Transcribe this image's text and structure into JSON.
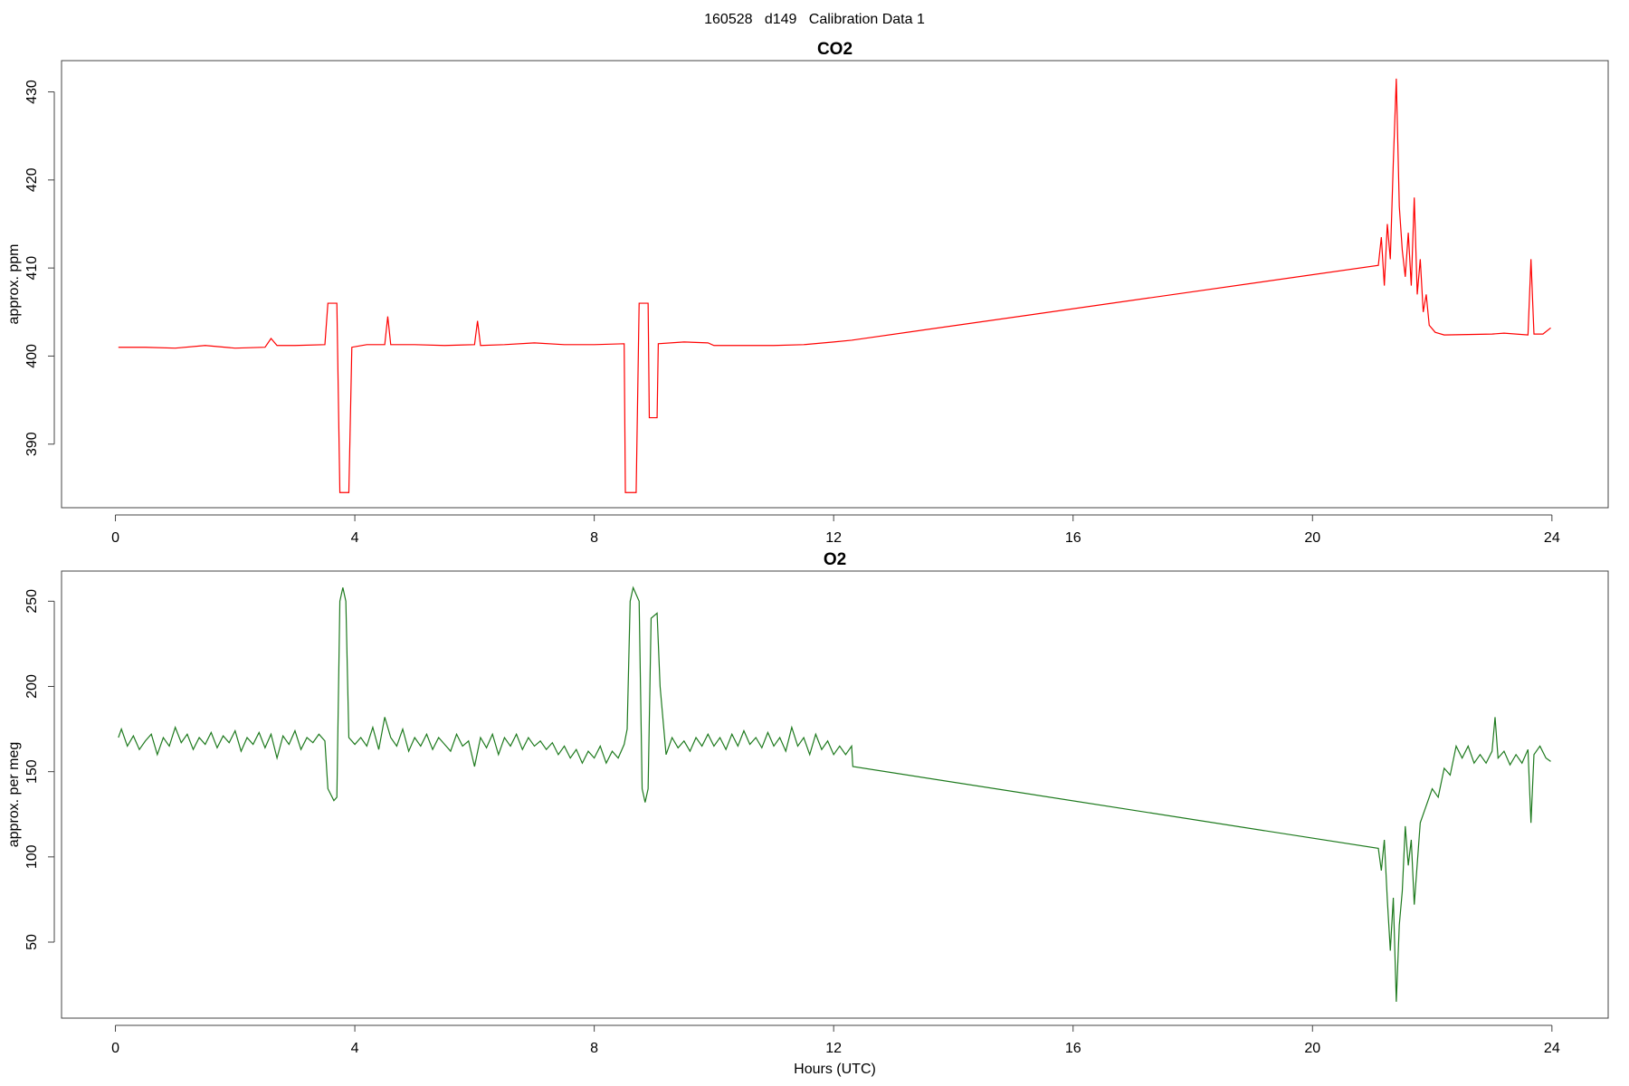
{
  "title": "160528   d149   Calibration Data 1",
  "chart_data": [
    {
      "type": "line",
      "title": "CO2",
      "ylabel": "approx. ppm",
      "color": "#ff0000",
      "xlim": [
        -0.9,
        24.94
      ],
      "ylim": [
        382.78,
        433.55
      ],
      "xticks": [
        0,
        4,
        8,
        12,
        16,
        20,
        24
      ],
      "yticks": [
        390,
        400,
        410,
        420,
        430
      ],
      "x": [
        0.05,
        0.5,
        1.0,
        1.5,
        2.0,
        2.5,
        2.6,
        2.7,
        3.0,
        3.5,
        3.55,
        3.7,
        3.75,
        3.9,
        3.95,
        4.2,
        4.5,
        4.55,
        4.6,
        5.0,
        5.5,
        6.0,
        6.05,
        6.1,
        6.5,
        7.0,
        7.5,
        8.0,
        8.5,
        8.52,
        8.7,
        8.75,
        8.9,
        8.92,
        9.05,
        9.07,
        9.5,
        9.9,
        10.0,
        11.0,
        11.5,
        12.0,
        12.3,
        21.1,
        21.15,
        21.2,
        21.25,
        21.3,
        21.35,
        21.4,
        21.45,
        21.5,
        21.55,
        21.6,
        21.65,
        21.7,
        21.75,
        21.8,
        21.85,
        21.9,
        21.95,
        22.05,
        22.2,
        23.0,
        23.2,
        23.6,
        23.65,
        23.7,
        23.85,
        23.98
      ],
      "values": [
        401,
        401,
        400.9,
        401.2,
        400.9,
        401,
        402,
        401.2,
        401.2,
        401.3,
        406,
        406,
        384.5,
        384.5,
        401,
        401.3,
        401.3,
        404.5,
        401.3,
        401.3,
        401.2,
        401.3,
        404,
        401.2,
        401.3,
        401.5,
        401.3,
        401.3,
        401.4,
        384.5,
        384.5,
        406,
        406,
        393,
        393,
        401.4,
        401.6,
        401.5,
        401.2,
        401.2,
        401.3,
        401.6,
        401.8,
        410.3,
        413.5,
        408,
        415,
        411,
        422,
        431.5,
        417,
        412,
        409,
        414,
        408,
        418,
        407,
        411,
        405,
        407,
        403.5,
        402.7,
        402.4,
        402.5,
        402.6,
        402.4,
        411,
        402.5,
        402.5,
        403.2
      ]
    },
    {
      "type": "line",
      "title": "O2",
      "ylabel": "approx. per meg",
      "xlabel": "Hours (UTC)",
      "color": "#1e7a1e",
      "xlim": [
        -0.9,
        24.94
      ],
      "ylim": [
        5.4,
        267.7
      ],
      "xticks": [
        0,
        4,
        8,
        12,
        16,
        20,
        24
      ],
      "yticks": [
        50,
        100,
        150,
        200,
        250
      ],
      "x": [
        0.05,
        0.1,
        0.2,
        0.3,
        0.4,
        0.5,
        0.6,
        0.7,
        0.8,
        0.9,
        1.0,
        1.1,
        1.2,
        1.3,
        1.4,
        1.5,
        1.6,
        1.7,
        1.8,
        1.9,
        2.0,
        2.1,
        2.2,
        2.3,
        2.4,
        2.5,
        2.6,
        2.7,
        2.8,
        2.9,
        3.0,
        3.1,
        3.2,
        3.3,
        3.4,
        3.5,
        3.55,
        3.65,
        3.7,
        3.75,
        3.8,
        3.85,
        3.9,
        4.0,
        4.1,
        4.2,
        4.3,
        4.4,
        4.5,
        4.6,
        4.7,
        4.8,
        4.9,
        5.0,
        5.1,
        5.2,
        5.3,
        5.4,
        5.5,
        5.6,
        5.7,
        5.8,
        5.9,
        6.0,
        6.1,
        6.2,
        6.3,
        6.4,
        6.5,
        6.6,
        6.7,
        6.8,
        6.9,
        7.0,
        7.1,
        7.2,
        7.3,
        7.4,
        7.5,
        7.6,
        7.7,
        7.8,
        7.9,
        8.0,
        8.1,
        8.2,
        8.3,
        8.4,
        8.5,
        8.55,
        8.6,
        8.65,
        8.75,
        8.8,
        8.85,
        8.9,
        8.95,
        9.05,
        9.1,
        9.2,
        9.3,
        9.4,
        9.5,
        9.6,
        9.7,
        9.8,
        9.9,
        10.0,
        10.1,
        10.2,
        10.3,
        10.4,
        10.5,
        10.6,
        10.7,
        10.8,
        10.9,
        11.0,
        11.1,
        11.2,
        11.3,
        11.4,
        11.5,
        11.6,
        11.7,
        11.8,
        11.9,
        12.0,
        12.1,
        12.2,
        12.3,
        12.32,
        21.1,
        21.15,
        21.2,
        21.25,
        21.3,
        21.35,
        21.4,
        21.45,
        21.5,
        21.55,
        21.6,
        21.65,
        21.7,
        21.8,
        21.9,
        22.0,
        22.1,
        22.2,
        22.3,
        22.4,
        22.5,
        22.6,
        22.7,
        22.8,
        22.9,
        23.0,
        23.05,
        23.1,
        23.2,
        23.3,
        23.4,
        23.5,
        23.6,
        23.65,
        23.7,
        23.8,
        23.9,
        23.98
      ],
      "values": [
        170,
        175,
        165,
        171,
        163,
        168,
        172,
        160,
        170,
        165,
        176,
        167,
        172,
        163,
        170,
        166,
        173,
        164,
        171,
        167,
        174,
        162,
        170,
        166,
        173,
        164,
        172,
        158,
        171,
        166,
        174,
        163,
        170,
        167,
        172,
        168,
        140,
        133,
        135,
        250,
        258,
        250,
        170,
        166,
        170,
        165,
        176,
        163,
        182,
        170,
        165,
        175,
        162,
        170,
        165,
        172,
        163,
        170,
        166,
        162,
        172,
        165,
        168,
        153,
        170,
        164,
        172,
        160,
        170,
        165,
        172,
        163,
        170,
        165,
        168,
        163,
        167,
        160,
        165,
        158,
        163,
        155,
        162,
        158,
        165,
        155,
        162,
        158,
        166,
        175,
        250,
        258,
        250,
        140,
        132,
        140,
        240,
        243,
        200,
        160,
        170,
        164,
        168,
        162,
        170,
        165,
        172,
        165,
        170,
        163,
        172,
        165,
        174,
        166,
        170,
        164,
        173,
        165,
        170,
        162,
        176,
        165,
        170,
        160,
        172,
        163,
        168,
        160,
        165,
        160,
        165,
        153,
        105,
        92,
        110,
        75,
        45,
        76,
        15,
        60,
        80,
        118,
        95,
        110,
        72,
        120,
        130,
        140,
        135,
        152,
        148,
        165,
        158,
        165,
        155,
        160,
        155,
        162,
        182,
        158,
        162,
        154,
        160,
        155,
        163,
        120,
        160,
        165,
        158,
        156
      ]
    }
  ]
}
